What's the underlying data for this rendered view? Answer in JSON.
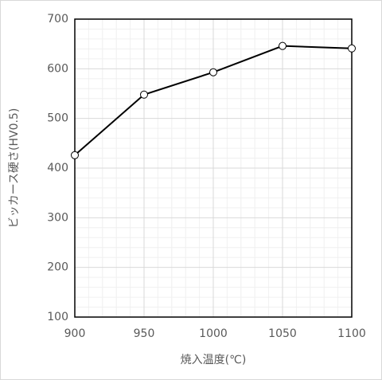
{
  "chart_data": {
    "type": "line",
    "x_label": "焼入温度(℃)",
    "y_label": "ビッカース硬さ(HV0.5)",
    "x": [
      900,
      950,
      1000,
      1050,
      1100
    ],
    "series": [
      {
        "name": "ビッカース硬さ",
        "color": "#000000",
        "values": [
          426,
          548,
          593,
          646,
          641
        ]
      }
    ],
    "xlim": [
      900,
      1100
    ],
    "xticks": [
      900,
      950,
      1000,
      1050,
      1100
    ],
    "ylim": [
      100,
      700
    ],
    "yticks": [
      100,
      200,
      300,
      400,
      500,
      600,
      700
    ],
    "grid": true,
    "minor_grid": true,
    "legend": false
  }
}
